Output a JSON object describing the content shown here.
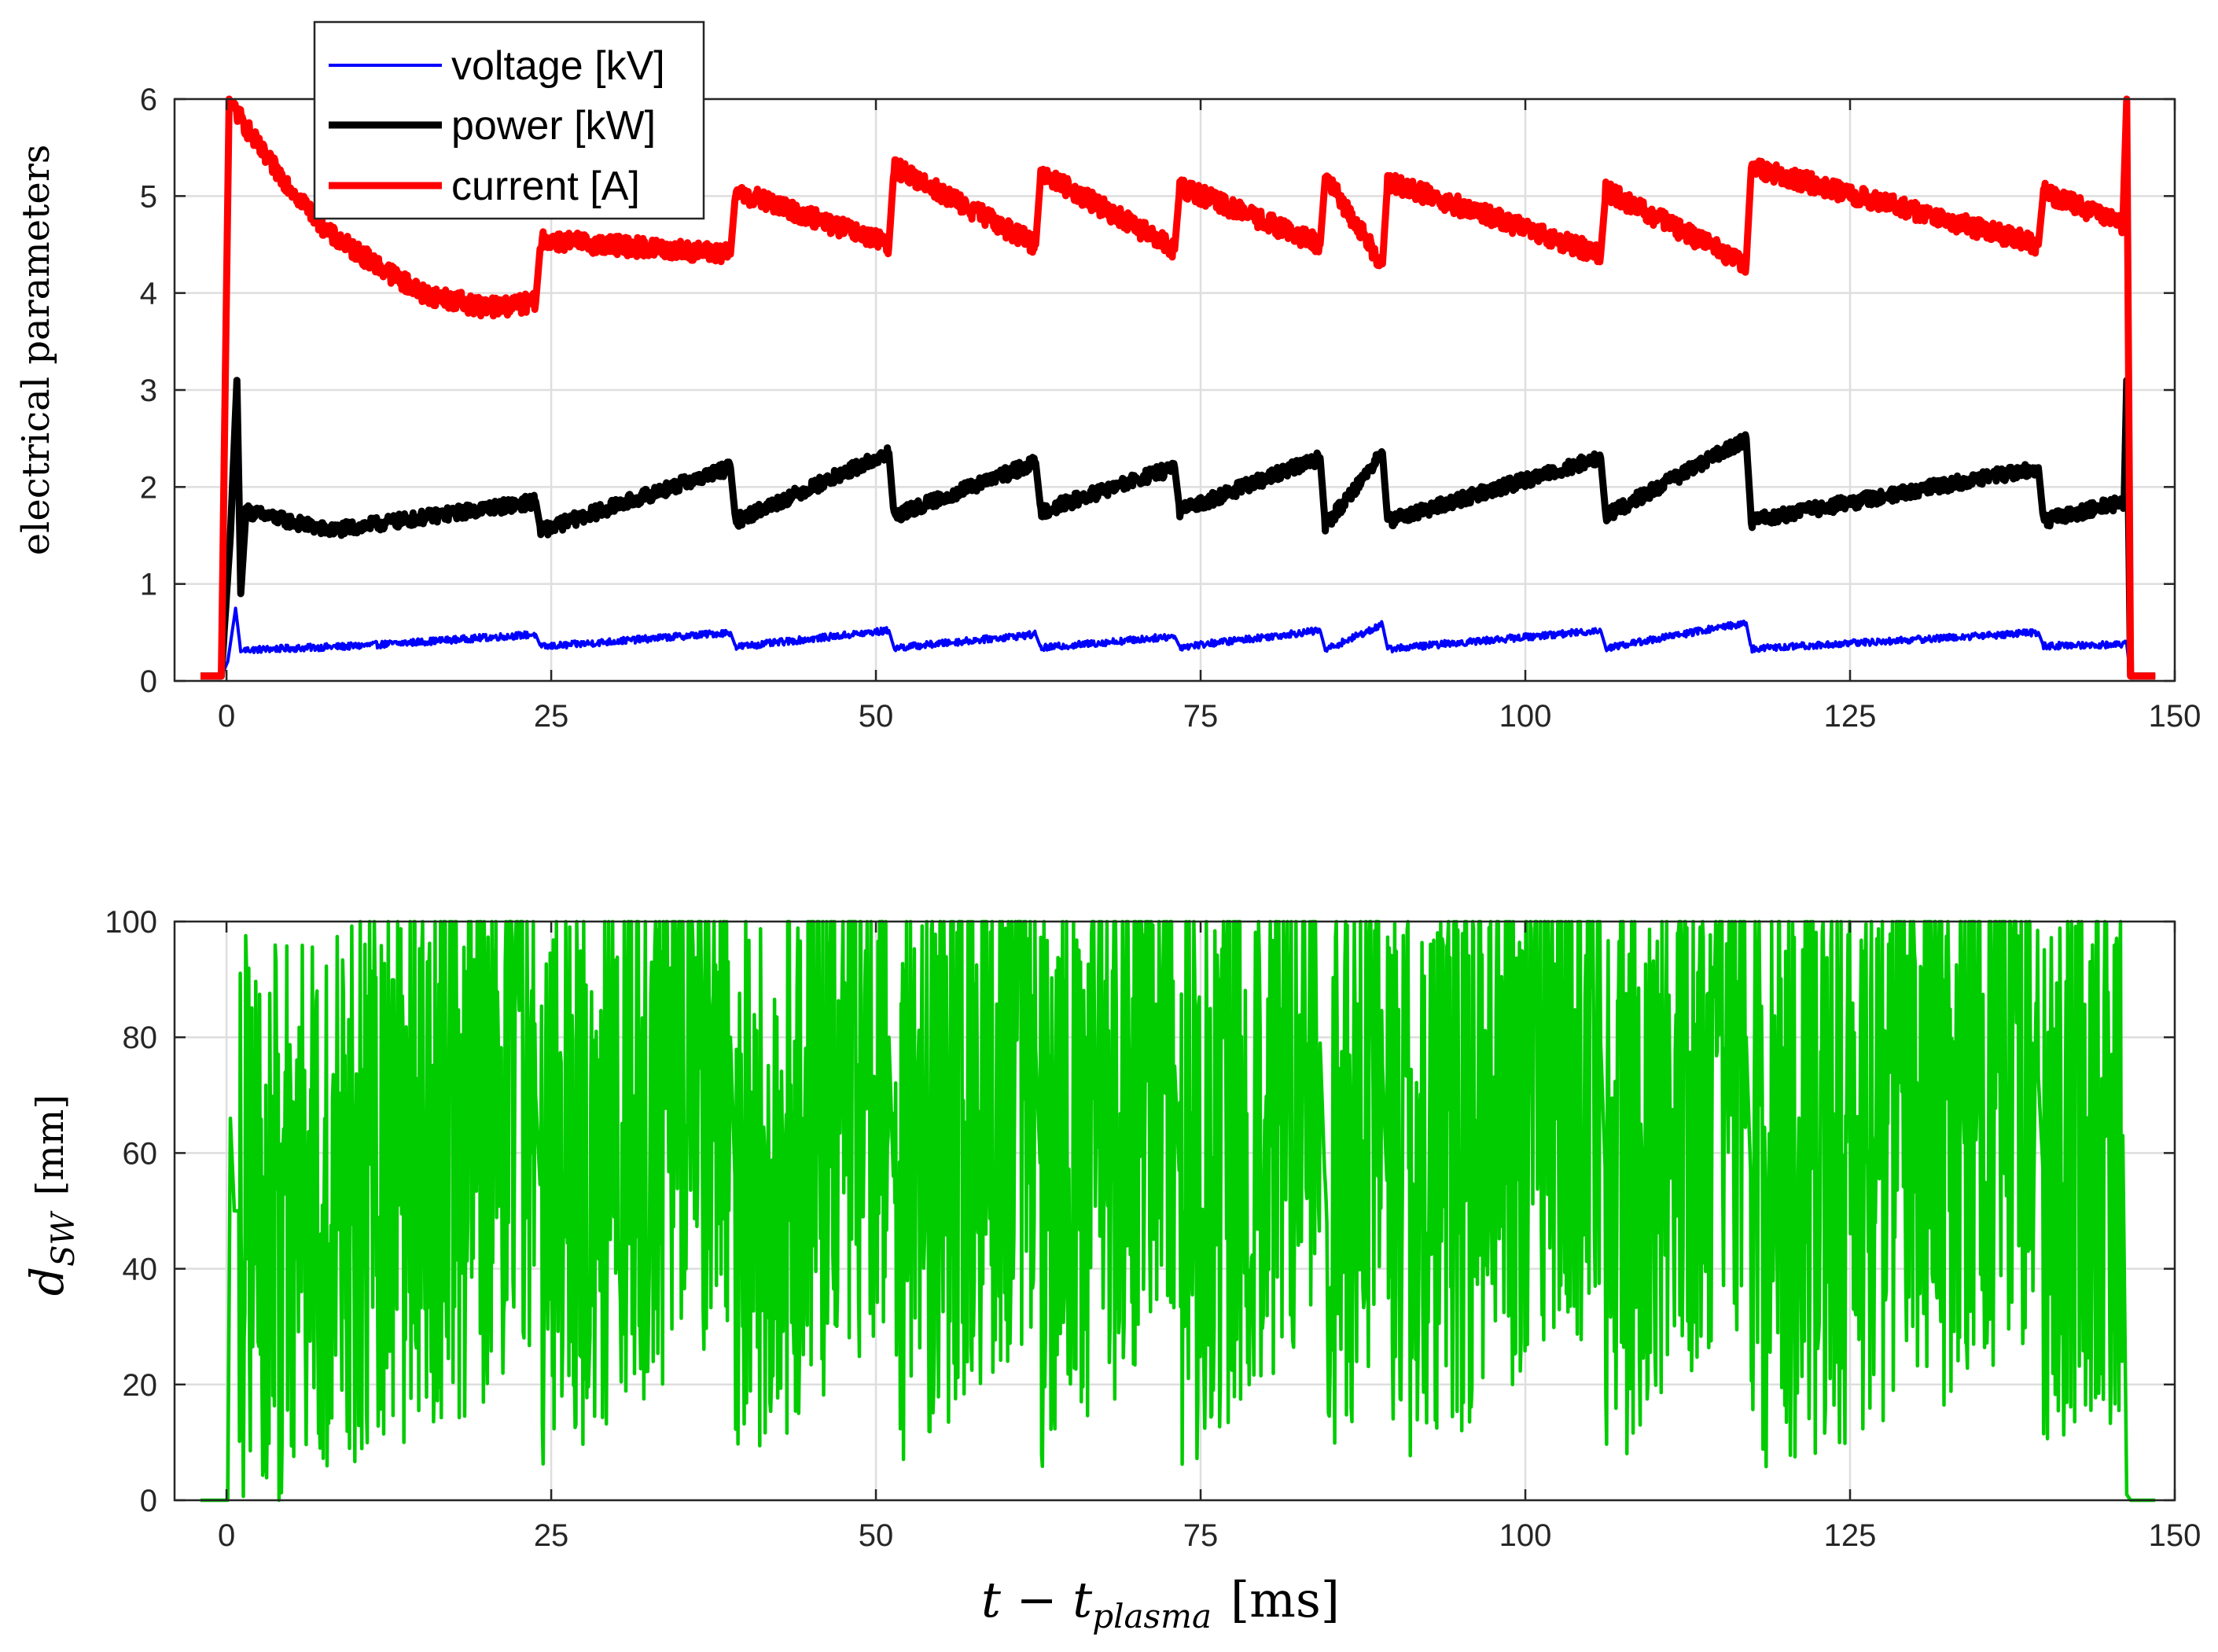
{
  "chart_data": [
    {
      "type": "line",
      "ylabel": "electrical parameters",
      "xlabel": "",
      "xlim": [
        -4,
        150
      ],
      "ylim": [
        0,
        6
      ],
      "xticks": [
        0,
        25,
        50,
        75,
        100,
        125,
        150
      ],
      "yticks": [
        0,
        1,
        2,
        3,
        4,
        5,
        6
      ],
      "xtick_labels": [
        "0",
        "25",
        "50",
        "75",
        "100",
        "125",
        "150"
      ],
      "ytick_labels": [
        "0",
        "1",
        "2",
        "3",
        "4",
        "5",
        "6"
      ],
      "grid": true,
      "legend": {
        "location": "top-left",
        "entries": [
          "voltage [kV]",
          "power [kW]",
          "current [A]"
        ]
      },
      "series": [
        {
          "name": "voltage [kV]",
          "color": "#0000ff",
          "x": [
            -2,
            -0.4,
            0.1,
            0.7,
            1.1,
            1.4,
            10,
            23.8,
            24.2,
            38.8,
            39.2,
            51,
            51.4,
            62.3,
            62.7,
            73,
            73.4,
            84.2,
            84.6,
            89,
            89.4,
            105.8,
            106.2,
            117,
            117.4,
            139.5,
            139.9,
            146.3,
            146.6,
            148.5
          ],
          "y": [
            0.05,
            0.05,
            0.2,
            0.75,
            0.3,
            0.32,
            0.36,
            0.48,
            0.35,
            0.5,
            0.35,
            0.52,
            0.34,
            0.48,
            0.34,
            0.46,
            0.35,
            0.52,
            0.32,
            0.58,
            0.33,
            0.52,
            0.34,
            0.6,
            0.33,
            0.5,
            0.36,
            0.38,
            0.03,
            0.05
          ]
        },
        {
          "name": "power [kW]",
          "color": "#000000",
          "x": [
            -2,
            -0.4,
            0.3,
            0.8,
            1.1,
            1.5,
            8,
            23.8,
            24.2,
            38.8,
            39.2,
            51,
            51.4,
            62.3,
            62.7,
            73,
            73.4,
            84.2,
            84.6,
            89,
            89.4,
            105.8,
            106.2,
            117,
            117.4,
            139.5,
            139.9,
            146.1,
            146.3,
            146.6,
            148.5
          ],
          "y": [
            0.05,
            0.05,
            1.5,
            3.1,
            0.9,
            1.75,
            1.55,
            1.85,
            1.55,
            2.2,
            1.65,
            2.35,
            1.7,
            2.25,
            1.75,
            2.2,
            1.75,
            2.3,
            1.6,
            2.35,
            1.65,
            2.3,
            1.7,
            2.5,
            1.65,
            2.2,
            1.65,
            1.85,
            3.1,
            0.05,
            0.05
          ]
        },
        {
          "name": "current [A]",
          "color": "#ff0000",
          "x": [
            -2,
            -0.4,
            0.2,
            0.6,
            3,
            8,
            15,
            20,
            23.8,
            24.2,
            38.8,
            39.2,
            51,
            51.4,
            62.3,
            62.7,
            73,
            73.4,
            84.2,
            84.6,
            89,
            89.4,
            105.8,
            106.2,
            117,
            117.4,
            139.5,
            139.9,
            146.0,
            146.3,
            146.6,
            148.5
          ],
          "y": [
            0.05,
            0.05,
            6.0,
            5.9,
            5.4,
            4.6,
            4.0,
            3.85,
            3.9,
            4.55,
            4.4,
            5.05,
            4.5,
            5.3,
            4.5,
            5.25,
            4.45,
            5.1,
            4.5,
            5.2,
            4.3,
            5.15,
            4.4,
            5.05,
            4.3,
            5.3,
            4.5,
            5.05,
            4.7,
            6.0,
            0.05,
            0.05
          ]
        }
      ]
    },
    {
      "type": "line",
      "ylabel": "d",
      "ylabel_sub": "SW",
      "ylabel_unit": "[mm]",
      "xlabel": "t − t",
      "xlabel_sub": "plasma",
      "xlabel_unit": "[ms]",
      "xlim": [
        -4,
        150
      ],
      "ylim": [
        0,
        100
      ],
      "xticks": [
        0,
        25,
        50,
        75,
        100,
        125,
        150
      ],
      "yticks": [
        0,
        20,
        40,
        60,
        80,
        100
      ],
      "xtick_labels": [
        "0",
        "25",
        "50",
        "75",
        "100",
        "125",
        "150"
      ],
      "ytick_labels": [
        "0",
        "20",
        "40",
        "60",
        "80",
        "100"
      ],
      "grid": true,
      "series": [
        {
          "name": "d_SW",
          "color": "#00cc00",
          "x": [
            -2,
            0.1,
            0.3,
            0.6,
            1,
            5,
            9,
            10,
            23.8,
            24.2,
            38.8,
            39.2,
            51,
            51.4,
            62.3,
            62.7,
            73,
            73.4,
            84.2,
            84.6,
            89,
            89.4,
            105.8,
            106.2,
            117,
            117.4,
            139.5,
            139.9,
            146.0,
            146.3,
            146.6,
            148.5
          ],
          "y": [
            0,
            0,
            66,
            50,
            50,
            48.5,
            48.5,
            56,
            70,
            52,
            80,
            52,
            80,
            52,
            78,
            55,
            75,
            54,
            79,
            53,
            75,
            52,
            79,
            54,
            80,
            53,
            73,
            55,
            63,
            1,
            0,
            0
          ]
        }
      ]
    }
  ]
}
